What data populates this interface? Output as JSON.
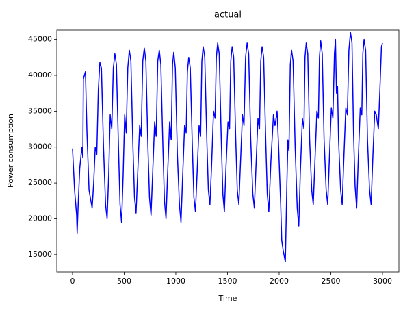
{
  "chart_data": {
    "type": "line",
    "title": "actual",
    "xlabel": "Time",
    "ylabel": "Power consumption",
    "color": "#0000ff",
    "x": [
      0,
      20,
      40,
      45,
      55,
      70,
      90,
      100,
      105,
      115,
      125,
      140,
      160,
      190,
      205,
      220,
      235,
      250,
      265,
      280,
      300,
      320,
      335,
      350,
      365,
      380,
      395,
      410,
      425,
      445,
      460,
      475,
      490,
      505,
      520,
      535,
      550,
      565,
      585,
      600,
      615,
      630,
      650,
      665,
      680,
      695,
      710,
      730,
      745,
      760,
      775,
      795,
      810,
      825,
      840,
      855,
      875,
      890,
      905,
      920,
      940,
      955,
      968,
      980,
      995,
      1015,
      1035,
      1050,
      1065,
      1085,
      1100,
      1112,
      1125,
      1140,
      1160,
      1175,
      1190,
      1205,
      1225,
      1240,
      1252,
      1265,
      1280,
      1300,
      1315,
      1330,
      1345,
      1365,
      1380,
      1392,
      1405,
      1420,
      1440,
      1455,
      1470,
      1485,
      1505,
      1520,
      1532,
      1545,
      1560,
      1580,
      1595,
      1610,
      1625,
      1645,
      1660,
      1675,
      1690,
      1705,
      1725,
      1745,
      1760,
      1775,
      1795,
      1810,
      1822,
      1835,
      1850,
      1870,
      1885,
      1900,
      1920,
      1945,
      1960,
      1980,
      1995,
      2015,
      2025,
      2040,
      2060,
      2075,
      2085,
      2095,
      2108,
      2120,
      2135,
      2155,
      2175,
      2190,
      2205,
      2225,
      2240,
      2250,
      2262,
      2277,
      2295,
      2315,
      2330,
      2345,
      2365,
      2380,
      2390,
      2402,
      2417,
      2435,
      2455,
      2470,
      2485,
      2505,
      2520,
      2535,
      2545,
      2555,
      2565,
      2575,
      2595,
      2610,
      2625,
      2645,
      2660,
      2675,
      2690,
      2705,
      2720,
      2735,
      2750,
      2765,
      2785,
      2800,
      2810,
      2822,
      2837,
      2855,
      2875,
      2890,
      2905,
      2925,
      2940,
      2960,
      2975,
      2990,
      3000
    ],
    "values": [
      29800,
      24000,
      20500,
      18000,
      22000,
      27000,
      30000,
      28500,
      39500,
      40000,
      40500,
      32000,
      24000,
      21500,
      25000,
      30000,
      29000,
      38000,
      41800,
      41000,
      30000,
      22000,
      20000,
      26000,
      34500,
      32500,
      41000,
      43000,
      41500,
      30000,
      22000,
      19500,
      26000,
      34500,
      32000,
      41000,
      43500,
      42000,
      30000,
      23000,
      20800,
      26000,
      33000,
      31500,
      42000,
      43800,
      42000,
      30000,
      23000,
      20500,
      26000,
      33500,
      31500,
      42000,
      43500,
      41500,
      30000,
      22500,
      20000,
      26000,
      33500,
      31000,
      41500,
      43200,
      41000,
      29000,
      22000,
      19500,
      25500,
      33000,
      32000,
      40500,
      42500,
      41000,
      30000,
      23000,
      21000,
      26000,
      33000,
      31500,
      42000,
      44000,
      42500,
      31000,
      24000,
      22000,
      27000,
      35000,
      34000,
      42500,
      44500,
      43000,
      31000,
      23500,
      21000,
      27000,
      33500,
      32500,
      42000,
      44000,
      42500,
      31000,
      24000,
      22000,
      27500,
      34500,
      33000,
      42500,
      44500,
      43000,
      31000,
      23500,
      21500,
      27000,
      34000,
      32500,
      42000,
      44000,
      42500,
      31000,
      23500,
      21000,
      28000,
      34500,
      33000,
      35000,
      30000,
      22000,
      17000,
      15500,
      14000,
      25000,
      31000,
      29500,
      41500,
      43500,
      42000,
      30000,
      21500,
      19000,
      26500,
      34000,
      32500,
      42500,
      44500,
      43000,
      31000,
      24000,
      22000,
      27500,
      35000,
      34000,
      42500,
      44800,
      43000,
      31000,
      24000,
      22000,
      28000,
      35500,
      34000,
      43000,
      45000,
      37500,
      38500,
      31000,
      24000,
      22000,
      28000,
      35500,
      34500,
      43500,
      46000,
      44500,
      32000,
      24500,
      21500,
      28000,
      35500,
      34500,
      43000,
      45000,
      43500,
      31000,
      24000,
      22000,
      28000,
      35000,
      34500,
      32500,
      38000,
      44000,
      44500
    ],
    "xlim": [
      -152,
      3159
    ],
    "ylim": [
      12600,
      46300
    ],
    "xticks": [
      0,
      500,
      1000,
      1500,
      2000,
      2500,
      3000
    ],
    "yticks": [
      15000,
      20000,
      25000,
      30000,
      35000,
      40000,
      45000
    ]
  }
}
